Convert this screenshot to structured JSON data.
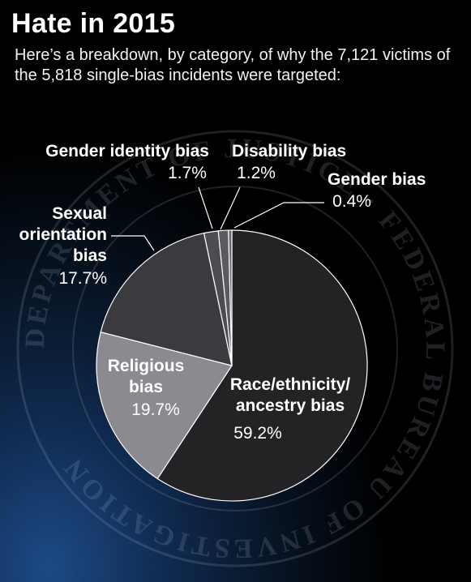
{
  "header": {
    "title": "Hate in 2015",
    "subtitle": "Here’s a breakdown, by category, of why the 7,121 victims of the 5,818 single-bias incidents were targeted:"
  },
  "seal": {
    "ring_text": "DEPARTMENT OF JUSTICE · FEDERAL BUREAU OF INVESTIGATION"
  },
  "colors": {
    "race": "#232326",
    "religious": "#8a8a90",
    "sexual": "#3a3a3f",
    "gender_identity": "#4c4c52",
    "disability": "#5a5a60",
    "gender": "#66666c",
    "outline": "#ffffff"
  },
  "chart_data": {
    "type": "pie",
    "title": "Hate in 2015",
    "slices": [
      {
        "key": "race",
        "label": "Race/ethnicity/ ancestry bias",
        "value": 59.2,
        "value_label": "59.2%"
      },
      {
        "key": "religious",
        "label": "Religious bias",
        "value": 19.7,
        "value_label": "19.7%"
      },
      {
        "key": "sexual",
        "label": "Sexual orientation bias",
        "value": 17.7,
        "value_label": "17.7%"
      },
      {
        "key": "gender_identity",
        "label": "Gender identity bias",
        "value": 1.7,
        "value_label": "1.7%"
      },
      {
        "key": "disability",
        "label": "Disability bias",
        "value": 1.2,
        "value_label": "1.2%"
      },
      {
        "key": "gender",
        "label": "Gender bias",
        "value": 0.4,
        "value_label": "0.4%"
      }
    ],
    "label_lines": {
      "race": [
        "Race/ethnicity/",
        "ancestry bias"
      ],
      "religious": [
        "Religious",
        "bias"
      ],
      "sexual": [
        "Sexual",
        "orientation",
        "bias"
      ],
      "gender_identity": [
        "Gender identity bias"
      ],
      "disability": [
        "Disability bias"
      ],
      "gender": [
        "Gender bias"
      ]
    }
  }
}
